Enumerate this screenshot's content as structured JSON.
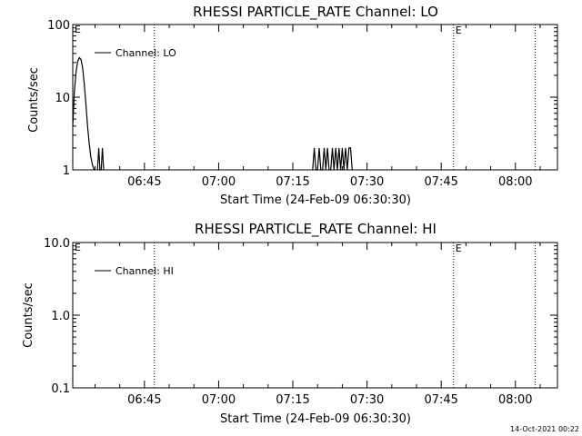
{
  "footer": {
    "timestamp": "14-Oct-2021 00:22"
  },
  "chart_data": [
    {
      "type": "line",
      "title": "RHESSI PARTICLE_RATE Channel: LO",
      "xlabel": "Start Time (24-Feb-09 06:30:30)",
      "ylabel": "Counts/sec",
      "yscale": "log",
      "ylim": [
        1,
        100
      ],
      "xlim": [
        "06:30:30",
        "08:08:30"
      ],
      "x_ticks": [
        "06:45",
        "07:00",
        "07:15",
        "07:30",
        "07:45",
        "08:00"
      ],
      "y_ticks": [
        "1",
        "10",
        "100"
      ],
      "legend": {
        "label": "Channel: LO",
        "placement": "top-left"
      },
      "grid": false,
      "markers": [
        {
          "time": "06:47:00",
          "label": ""
        },
        {
          "time": "07:47:30",
          "label": "E"
        },
        {
          "time": "08:04:00",
          "label": ""
        }
      ],
      "corner_label": "E",
      "series": [
        {
          "name": "Channel: LO",
          "segments": [
            {
              "x": [
                "06:30:30",
                "06:30:50",
                "06:31:10",
                "06:31:30",
                "06:31:50",
                "06:32:10",
                "06:32:30",
                "06:32:50",
                "06:33:10",
                "06:33:30",
                "06:33:50",
                "06:34:10",
                "06:34:30",
                "06:34:50"
              ],
              "y": [
                4,
                12,
                22,
                31,
                35,
                33,
                25,
                15,
                8,
                4,
                2.3,
                1.5,
                1.15,
                1
              ]
            },
            {
              "x": [
                "06:35:30",
                "06:35:45",
                "06:36:00",
                "06:36:15",
                "06:36:30",
                "06:36:45"
              ],
              "y": [
                1,
                2,
                1,
                1,
                2,
                1
              ]
            },
            {
              "x": [
                "07:19:00",
                "07:19:20",
                "07:19:40",
                "07:20:00",
                "07:20:20",
                "07:20:40",
                "07:21:00",
                "07:21:20",
                "07:21:40",
                "07:22:00",
                "07:22:20",
                "07:22:40",
                "07:23:00",
                "07:23:20",
                "07:23:40",
                "07:24:00",
                "07:24:20",
                "07:24:40",
                "07:25:00",
                "07:25:20",
                "07:25:40",
                "07:26:00",
                "07:26:20",
                "07:26:40",
                "07:27:00"
              ],
              "y": [
                1,
                2,
                1,
                1,
                2,
                1,
                1,
                2,
                1,
                2,
                1,
                1,
                2,
                1,
                2,
                1,
                2,
                1,
                2,
                1,
                2,
                1,
                2,
                2,
                1
              ]
            }
          ]
        }
      ]
    },
    {
      "type": "line",
      "title": "RHESSI PARTICLE_RATE Channel: HI",
      "xlabel": "Start Time (24-Feb-09 06:30:30)",
      "ylabel": "Counts/sec",
      "yscale": "log",
      "ylim": [
        0.1,
        10
      ],
      "xlim": [
        "06:30:30",
        "08:08:30"
      ],
      "x_ticks": [
        "06:45",
        "07:00",
        "07:15",
        "07:30",
        "07:45",
        "08:00"
      ],
      "y_ticks": [
        "0.1",
        "1.0",
        "10.0"
      ],
      "legend": {
        "label": "Channel: HI",
        "placement": "top-left"
      },
      "grid": false,
      "markers": [
        {
          "time": "06:47:00",
          "label": ""
        },
        {
          "time": "07:47:30",
          "label": "E"
        },
        {
          "time": "08:04:00",
          "label": ""
        }
      ],
      "corner_label": "E",
      "series": [
        {
          "name": "Channel: HI",
          "segments": []
        }
      ]
    }
  ]
}
